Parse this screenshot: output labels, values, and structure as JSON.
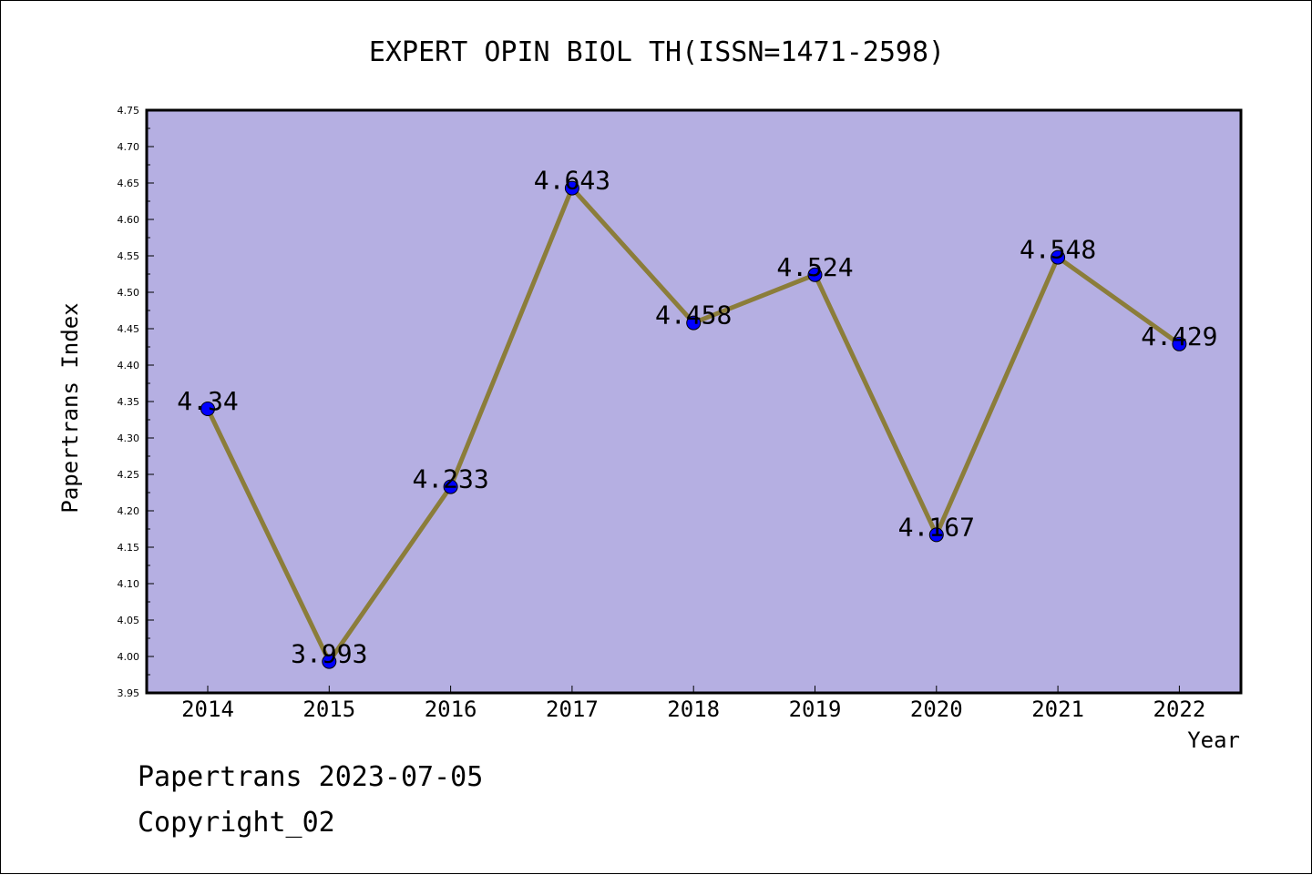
{
  "chart_data": {
    "type": "line",
    "title": "EXPERT OPIN BIOL TH(ISSN=1471-2598)",
    "xlabel": "Year",
    "ylabel": "Papertrans Index",
    "categories": [
      "2014",
      "2015",
      "2016",
      "2017",
      "2018",
      "2019",
      "2020",
      "2021",
      "2022"
    ],
    "values": [
      4.34,
      3.993,
      4.233,
      4.643,
      4.458,
      4.524,
      4.167,
      4.548,
      4.429
    ],
    "data_labels": [
      "4.34",
      "3.993",
      "4.233",
      "4.643",
      "4.458",
      "4.524",
      "4.167",
      "4.548",
      "4.429"
    ],
    "ylim": [
      3.95,
      4.75
    ],
    "yticks": [
      "3.95",
      "4.00",
      "4.05",
      "4.10",
      "4.15",
      "4.20",
      "4.25",
      "4.30",
      "4.35",
      "4.40",
      "4.45",
      "4.50",
      "4.55",
      "4.60",
      "4.65",
      "4.70",
      "4.75"
    ],
    "grid": false,
    "legend": "none"
  },
  "colors": {
    "plot_background": "#b5afe2",
    "line": "#8b7d3a",
    "marker": "#0000ff",
    "axis": "#000000"
  },
  "footer": {
    "date_line": "Papertrans 2023-07-05",
    "copyright_line": "Copyright_02"
  }
}
